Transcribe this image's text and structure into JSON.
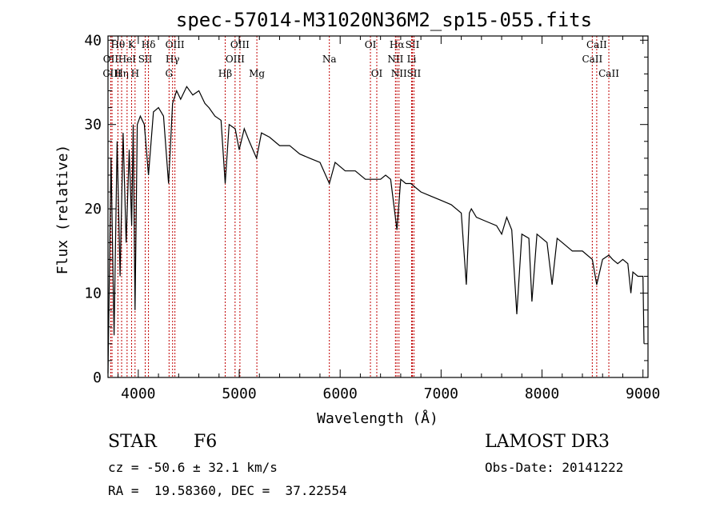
{
  "chart_data": {
    "type": "line",
    "title": "spec-57014-M31020N36M2_sp15-055.fits",
    "xlabel": "Wavelength (Å)",
    "ylabel": "Flux (relative)",
    "xlim": [
      3700,
      9050
    ],
    "ylim": [
      0,
      40.5
    ],
    "x_ticks": [
      4000,
      5000,
      6000,
      7000,
      8000,
      9000
    ],
    "y_ticks": [
      0,
      10,
      20,
      30,
      40
    ],
    "grid": false,
    "series": [
      {
        "name": "spectrum",
        "color": "#000000",
        "x": [
          3700,
          3730,
          3760,
          3790,
          3820,
          3850,
          3880,
          3910,
          3935,
          3950,
          3968,
          3990,
          4020,
          4060,
          4101,
          4150,
          4200,
          4250,
          4300,
          4340,
          4380,
          4420,
          4480,
          4540,
          4600,
          4660,
          4700,
          4760,
          4820,
          4861,
          4900,
          4960,
          5000,
          5050,
          5100,
          5172,
          5220,
          5300,
          5400,
          5500,
          5600,
          5700,
          5800,
          5893,
          5950,
          6050,
          6150,
          6250,
          6300,
          6400,
          6450,
          6500,
          6563,
          6600,
          6650,
          6700,
          6800,
          6900,
          7000,
          7100,
          7200,
          7250,
          7280,
          7300,
          7350,
          7450,
          7550,
          7600,
          7650,
          7700,
          7750,
          7800,
          7870,
          7900,
          7950,
          8050,
          8100,
          8150,
          8200,
          8300,
          8400,
          8498,
          8542,
          8600,
          8662,
          8700,
          8750,
          8800,
          8850,
          8880,
          8900,
          8950,
          9000,
          9010
        ],
        "y": [
          0.5,
          26,
          5,
          28,
          12,
          29,
          16,
          27,
          18,
          30,
          8,
          30,
          31,
          30,
          24,
          31.5,
          32,
          31,
          23,
          32.5,
          34,
          33,
          34.5,
          33.5,
          34,
          32.5,
          32,
          31,
          30.5,
          23,
          30,
          29.5,
          27,
          29.5,
          28,
          26,
          29,
          28.5,
          27.5,
          27.5,
          26.5,
          26,
          25.5,
          23,
          25.5,
          24.5,
          24.5,
          23.5,
          23.5,
          23.5,
          24,
          23.5,
          17.5,
          23.5,
          23,
          23,
          22,
          21.5,
          21,
          20.5,
          19.5,
          11,
          19.5,
          20,
          19,
          18.5,
          18,
          17,
          19,
          17.5,
          7.5,
          17,
          16.5,
          9,
          17,
          16,
          11,
          16.5,
          16,
          15,
          15,
          14,
          11,
          14,
          14.5,
          14,
          13.5,
          14,
          13.5,
          10,
          12.5,
          12,
          12,
          4
        ]
      }
    ],
    "spectral_lines": [
      {
        "name": "Hθ",
        "x": 3798,
        "row": 1
      },
      {
        "name": "OII",
        "x": 3727,
        "row": 2
      },
      {
        "name": "CIII",
        "x": 3740,
        "row": 3
      },
      {
        "name": "Hη",
        "x": 3835,
        "row": 3
      },
      {
        "name": "K",
        "x": 3934,
        "row": 1
      },
      {
        "name": "HeI",
        "x": 3889,
        "row": 2
      },
      {
        "name": "SII",
        "x": 4069,
        "row": 2
      },
      {
        "name": "H",
        "x": 3968,
        "row": 3
      },
      {
        "name": "Hδ",
        "x": 4101,
        "row": 1
      },
      {
        "name": "OIII",
        "x": 4363,
        "row": 1
      },
      {
        "name": "Hγ",
        "x": 4340,
        "row": 2
      },
      {
        "name": "G",
        "x": 4305,
        "row": 3
      },
      {
        "name": "Hβ",
        "x": 4861,
        "row": 3
      },
      {
        "name": "OIII",
        "x": 5007,
        "row": 1
      },
      {
        "name": "OIII",
        "x": 4959,
        "row": 2
      },
      {
        "name": "Mg",
        "x": 5175,
        "row": 3
      },
      {
        "name": "Na",
        "x": 5893,
        "row": 2
      },
      {
        "name": "OI",
        "x": 6300,
        "row": 1
      },
      {
        "name": "OI",
        "x": 6363,
        "row": 3
      },
      {
        "name": "Hα",
        "x": 6563,
        "row": 1
      },
      {
        "name": "SII",
        "x": 6716,
        "row": 1
      },
      {
        "name": "NII",
        "x": 6548,
        "row": 2
      },
      {
        "name": "Li",
        "x": 6708,
        "row": 2
      },
      {
        "name": "NII",
        "x": 6583,
        "row": 3
      },
      {
        "name": "SII",
        "x": 6731,
        "row": 3
      },
      {
        "name": "CaII",
        "x": 8542,
        "row": 1
      },
      {
        "name": "CaII",
        "x": 8498,
        "row": 2
      },
      {
        "name": "CaII",
        "x": 8662,
        "row": 3
      }
    ]
  },
  "info": {
    "object_class": "STAR",
    "subclass": "F6",
    "survey": "LAMOST DR3",
    "redshift": "cz = -50.6 ± 32.1 km/s",
    "obs_date": "Obs-Date: 20141222",
    "coords": "RA =  19.58360, DEC =  37.22554"
  }
}
